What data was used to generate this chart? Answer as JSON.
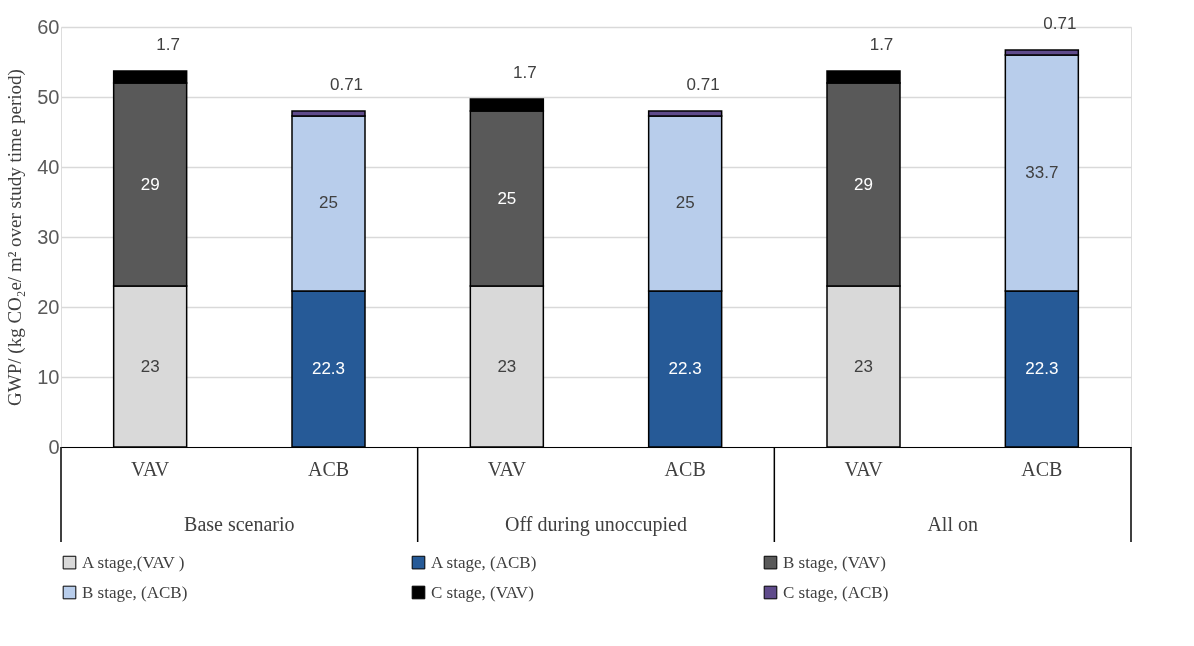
{
  "chart_data": {
    "type": "bar",
    "stacked": true,
    "ylabel": "GWP/ (kg CO₂e/ m² over study time period)",
    "categories": [
      "VAV",
      "ACB",
      "VAV",
      "ACB",
      "VAV",
      "ACB"
    ],
    "series": [
      {
        "name": "A  stage,(VAV )",
        "color": "#d9d9d9",
        "values": [
          23,
          null,
          23,
          null,
          23,
          null
        ]
      },
      {
        "name": "A  stage, (ACB)",
        "color": "#265a97",
        "values": [
          null,
          22.3,
          null,
          22.3,
          null,
          22.3
        ]
      },
      {
        "name": "B stage, (VAV)",
        "color": "#595959",
        "values": [
          29,
          null,
          25,
          null,
          29,
          null
        ]
      },
      {
        "name": "B stage, (ACB)",
        "color": "#b8cdeb",
        "values": [
          null,
          25,
          null,
          25,
          null,
          33.7
        ]
      },
      {
        "name": "C stage, (VAV)",
        "color": "#000000",
        "values": [
          1.7,
          null,
          1.7,
          null,
          1.7,
          null
        ]
      },
      {
        "name": "C stage, (ACB)",
        "color": "#5f4b8b",
        "values": [
          null,
          0.71,
          null,
          0.71,
          null,
          0.71
        ]
      }
    ],
    "ylim": [
      0,
      60
    ],
    "yticks": [
      0,
      10,
      20,
      30,
      40,
      50,
      60
    ],
    "grid": "y",
    "legend": "bottom",
    "data_labels": true,
    "annotations": [
      "Base scenario",
      "Off during unoccupied",
      "All on"
    ]
  }
}
